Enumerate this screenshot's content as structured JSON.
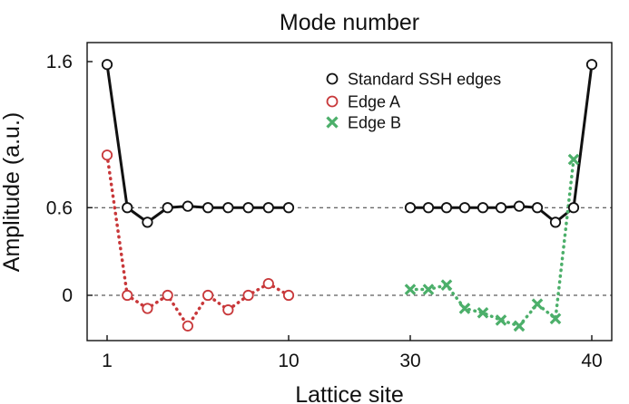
{
  "chart_data": {
    "type": "line",
    "title": "Mode number",
    "xlabel": "Lattice site",
    "ylabel": "Amplitude (a.u.)",
    "x_ticks": [
      "1",
      "10",
      "30",
      "40"
    ],
    "y_ticks": [
      "1.6",
      "0.6",
      "0"
    ],
    "reference_lines": [
      0.6,
      0
    ],
    "legend_position": "top-right",
    "segments": [
      {
        "x_range": [
          1,
          10
        ]
      },
      {
        "x_range": [
          30,
          40
        ]
      }
    ],
    "series": [
      {
        "name": "Standard SSH edges",
        "color": "#111111",
        "marker": "circle",
        "line": "solid",
        "points": [
          [
            1,
            1.58
          ],
          [
            2,
            0.6
          ],
          [
            3,
            0.5
          ],
          [
            4,
            0.6
          ],
          [
            5,
            0.61
          ],
          [
            6,
            0.6
          ],
          [
            7,
            0.6
          ],
          [
            8,
            0.6
          ],
          [
            9,
            0.6
          ],
          [
            10,
            0.6
          ],
          [
            30,
            0.6
          ],
          [
            31,
            0.6
          ],
          [
            32,
            0.6
          ],
          [
            33,
            0.6
          ],
          [
            34,
            0.6
          ],
          [
            35,
            0.6
          ],
          [
            36,
            0.61
          ],
          [
            37,
            0.6
          ],
          [
            38,
            0.5
          ],
          [
            39,
            0.6
          ],
          [
            40,
            1.58
          ]
        ]
      },
      {
        "name": "Edge A",
        "color": "#c8383a",
        "marker": "circle",
        "line": "dotted",
        "points": [
          [
            1,
            0.96
          ],
          [
            2,
            0.0
          ],
          [
            3,
            -0.09
          ],
          [
            4,
            0.0
          ],
          [
            5,
            -0.21
          ],
          [
            6,
            0.0
          ],
          [
            7,
            -0.1
          ],
          [
            8,
            0.0
          ],
          [
            9,
            0.08
          ],
          [
            10,
            0.0
          ]
        ]
      },
      {
        "name": "Edge B",
        "color": "#4caf6a",
        "marker": "x",
        "line": "dotted",
        "points": [
          [
            30,
            0.04
          ],
          [
            31,
            0.04
          ],
          [
            32,
            0.07
          ],
          [
            33,
            -0.09
          ],
          [
            34,
            -0.12
          ],
          [
            35,
            -0.17
          ],
          [
            36,
            -0.21
          ],
          [
            37,
            -0.06
          ],
          [
            38,
            -0.16
          ],
          [
            39,
            0.93
          ]
        ]
      }
    ]
  }
}
